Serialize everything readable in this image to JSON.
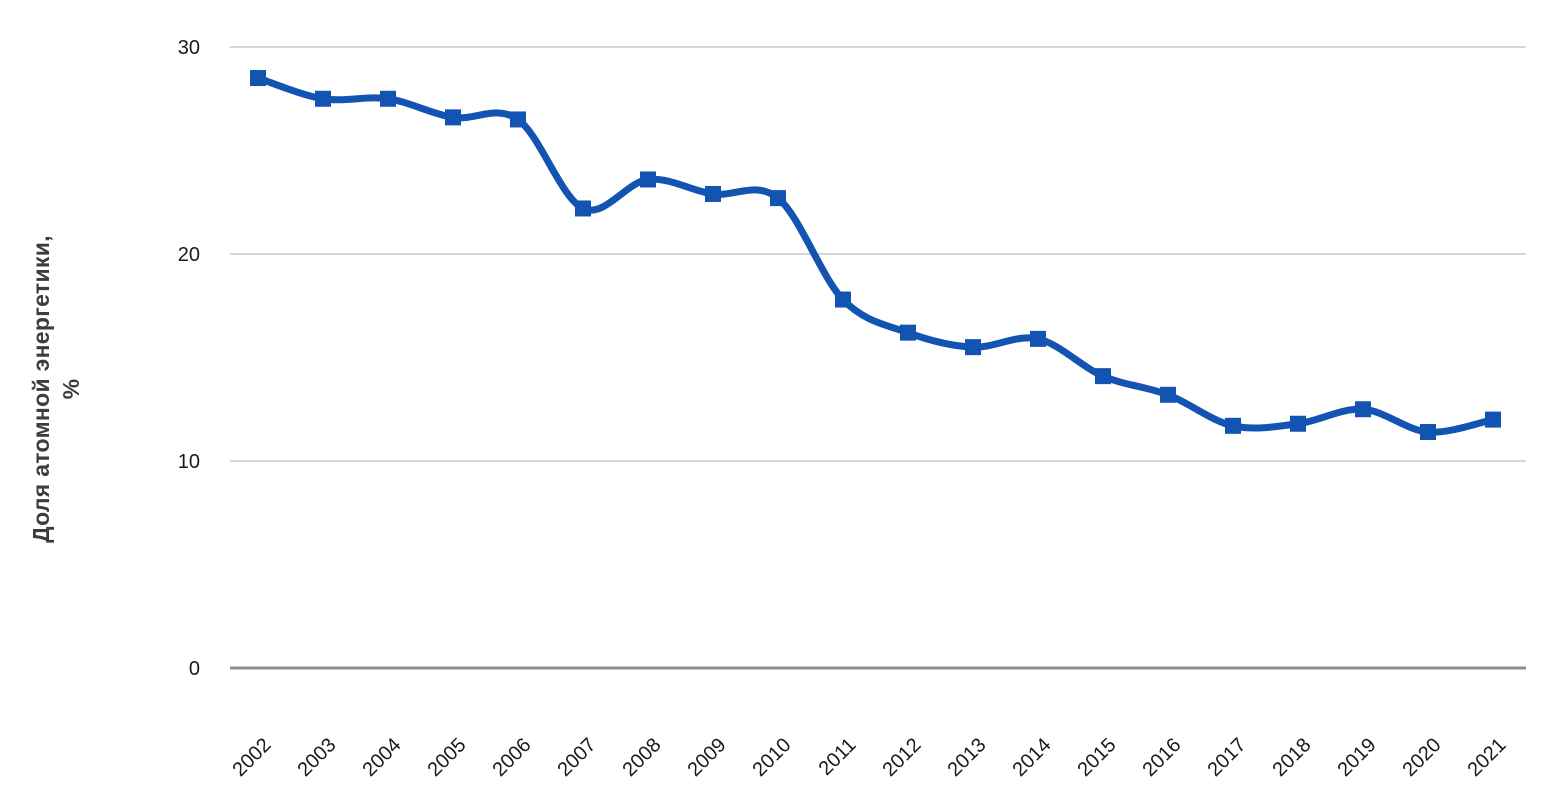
{
  "chart_data": {
    "type": "line",
    "title": "",
    "ylabel_line1": "Доля атомной энергетики,",
    "ylabel_line2": "%",
    "categories": [
      "2002",
      "2003",
      "2004",
      "2005",
      "2006",
      "2007",
      "2008",
      "2009",
      "2010",
      "2011",
      "2012",
      "2013",
      "2014",
      "2015",
      "2016",
      "2017",
      "2018",
      "2019",
      "2020",
      "2021"
    ],
    "series": [
      {
        "name": "Доля атомной энергетики, %",
        "values": [
          28.5,
          27.5,
          27.5,
          26.6,
          26.5,
          22.2,
          23.6,
          22.9,
          22.7,
          17.8,
          16.2,
          15.5,
          15.9,
          14.1,
          13.2,
          11.7,
          11.8,
          12.5,
          11.4,
          12.0
        ]
      }
    ],
    "yticks": [
      0,
      10,
      20,
      30
    ],
    "ylim": [
      0,
      30
    ],
    "grid": "horizontal",
    "legend_position": "none",
    "smooth_line": true,
    "marker_shape": "square",
    "colors": {
      "line": "#1353b1",
      "gridline": "#d6d6d6",
      "axis_line": "#8f8f8f",
      "tick_text": "#1a1a1a",
      "axis_title_text": "#3d3d3d",
      "background": "#ffffff"
    }
  }
}
